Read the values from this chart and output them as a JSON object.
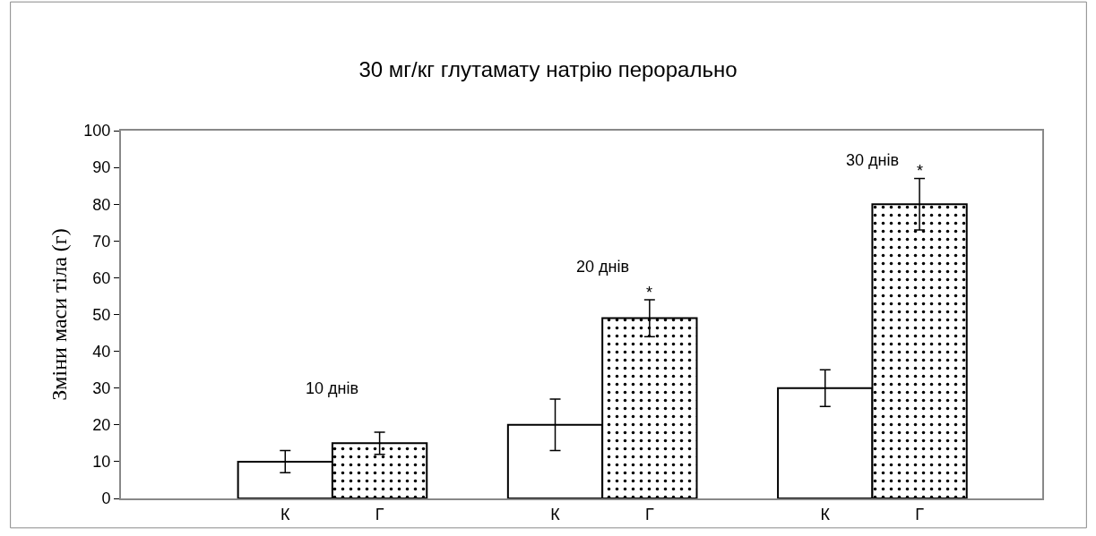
{
  "chart_data": {
    "type": "bar",
    "title": "30 мг/кг глутамату натрію перорально",
    "ylabel": "Зміни маси тіла (г)",
    "categories": [
      "К",
      "Г",
      "К",
      "Г",
      "К",
      "Г"
    ],
    "series": [
      {
        "color": "#ffffff",
        "values": [
          10,
          null,
          20,
          null,
          30,
          null
        ],
        "errors": [
          3,
          null,
          7,
          null,
          5,
          null
        ]
      },
      {
        "color": "#000000",
        "values": [
          null,
          15,
          null,
          49,
          null,
          80
        ],
        "errors": [
          null,
          3,
          null,
          5,
          null,
          7
        ]
      }
    ],
    "annotations": [
      "10 днів",
      "20 днів",
      "30 днів",
      "*",
      "*"
    ],
    "ylim": [
      0,
      100
    ],
    "yticks": [
      0,
      10,
      20,
      30,
      40,
      50,
      60,
      70,
      80,
      90,
      100
    ],
    "legend": false
  }
}
